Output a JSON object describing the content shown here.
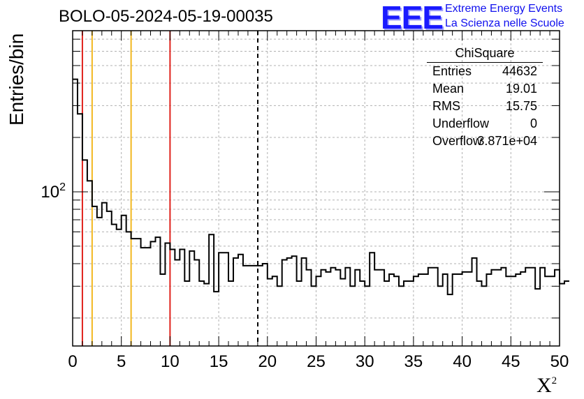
{
  "header": {
    "title": "BOLO-05-2024-05-19-00035",
    "logo_text": "EEE",
    "logo_line1": "Extreme Energy Events",
    "logo_line2": "La Scienza nelle Scuole"
  },
  "stats": {
    "title": "ChiSquare",
    "rows": [
      {
        "key": "Entries",
        "value": "44632"
      },
      {
        "key": "Mean",
        "value": "19.01"
      },
      {
        "key": "RMS",
        "value": "15.75"
      },
      {
        "key": "Underflow",
        "value": "0"
      },
      {
        "key": "Overflow",
        "value": "3.871e+04"
      }
    ]
  },
  "colors": {
    "histogram": "#000000",
    "red_line": "#e0221c",
    "yellow_line": "#f2b820",
    "mean_line": "#000000",
    "grid": "#b0b0b0"
  },
  "chart_data": {
    "type": "histogram",
    "title": "BOLO-05-2024-05-19-00035",
    "xlabel": "X",
    "xlabel_superscript": "2",
    "ylabel": "Entries/bin",
    "xlim": [
      0,
      50
    ],
    "ylim": [
      14,
      780
    ],
    "y_scale": "log",
    "grid": true,
    "x_ticks": [
      0,
      5,
      10,
      15,
      20,
      25,
      30,
      35,
      40,
      45,
      50
    ],
    "y_tick_label": "10",
    "y_tick_label_exp": "2",
    "y_tick_value": 100,
    "bin_width": 0.5,
    "bin_start": 0,
    "values": [
      420,
      270,
      150,
      115,
      83,
      72,
      87,
      78,
      66,
      62,
      74,
      60,
      55,
      55,
      49,
      49,
      53,
      56,
      35,
      52,
      48,
      42,
      48,
      32,
      47,
      42,
      32,
      31,
      58,
      28,
      46,
      46,
      32,
      43,
      45,
      39,
      39,
      39,
      39,
      40,
      33,
      34,
      30,
      42,
      43,
      44,
      32,
      43,
      37,
      30,
      34,
      37,
      36,
      38,
      37,
      33,
      38,
      30,
      37,
      32,
      30,
      46,
      37,
      37,
      32,
      35,
      34,
      30,
      32,
      32,
      34,
      35,
      35,
      38,
      38,
      30,
      35,
      27,
      35,
      35,
      36,
      36,
      43,
      32,
      30,
      35,
      37,
      37,
      38,
      34,
      34,
      35,
      36,
      38,
      38,
      29,
      38,
      34,
      34,
      37,
      31,
      32
    ],
    "vertical_lines": [
      {
        "x": 1,
        "color": "red"
      },
      {
        "x": 2,
        "color": "yellow"
      },
      {
        "x": 6,
        "color": "yellow"
      },
      {
        "x": 10,
        "color": "red"
      },
      {
        "x": 19.01,
        "color": "black",
        "style": "dashed"
      }
    ]
  }
}
